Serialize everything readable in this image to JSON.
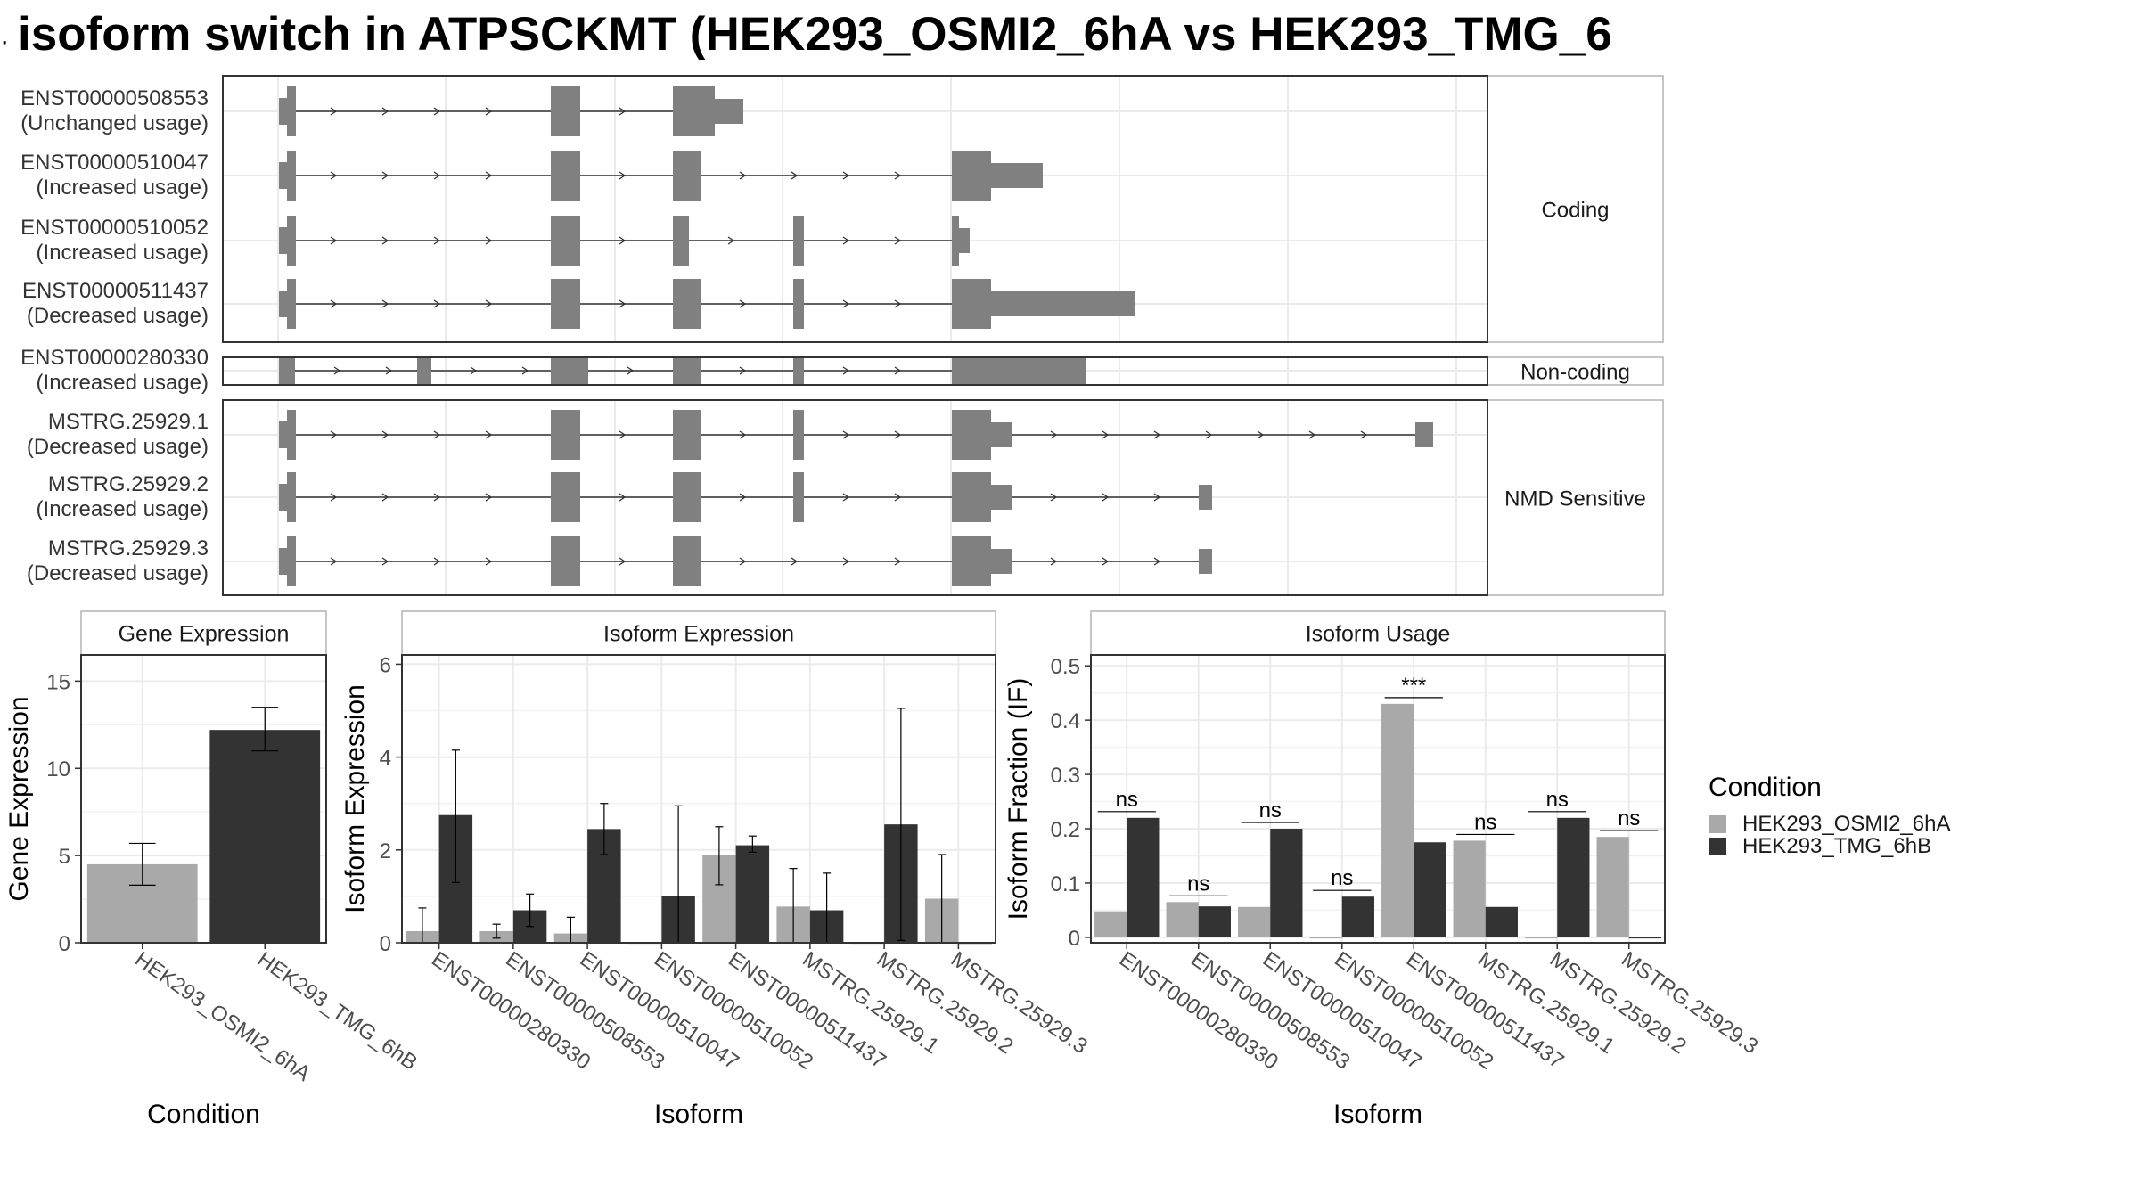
{
  "title": "isoform switch in ATPSCKMT (HEK293_OSMI2_6hA vs HEK293_TMG_6",
  "colors": {
    "cond_a": "#a9a9a9",
    "cond_b": "#333333",
    "exon": "#808080",
    "panel_border": "#333333",
    "grid": "#ebebeb",
    "strip_border": "#b3b3b3"
  },
  "structure": {
    "groups": [
      {
        "label": "Coding",
        "isoforms": [
          {
            "id": "ENST00000508553",
            "usage": "(Unchanged usage)"
          },
          {
            "id": "ENST00000510047",
            "usage": "(Increased usage)"
          },
          {
            "id": "ENST00000510052",
            "usage": "(Increased usage)"
          },
          {
            "id": "ENST00000511437",
            "usage": "(Decreased usage)"
          }
        ]
      },
      {
        "label": "Non-coding",
        "isoforms": [
          {
            "id": "ENST00000280330",
            "usage": "(Increased usage)"
          }
        ]
      },
      {
        "label": "NMD Sensitive",
        "isoforms": [
          {
            "id": "MSTRG.25929.1",
            "usage": "(Decreased usage)"
          },
          {
            "id": "MSTRG.25929.2",
            "usage": "(Increased usage)"
          },
          {
            "id": "MSTRG.25929.3",
            "usage": "(Decreased usage)"
          }
        ]
      }
    ]
  },
  "legend": {
    "title": "Condition",
    "entries": [
      "HEK293_OSMI2_6hA",
      "HEK293_TMG_6hB"
    ]
  },
  "chart_data": [
    {
      "type": "bar",
      "title": "Gene Expression",
      "xlabel": "Condition",
      "ylabel": "Gene Expression",
      "ylim": [
        0,
        16.5
      ],
      "yticks": [
        0,
        5,
        10,
        15
      ],
      "categories": [
        "HEK293_OSMI2_6hA",
        "HEK293_TMG_6hB"
      ],
      "values": [
        4.5,
        12.2
      ],
      "errors_low": [
        3.3,
        11.0
      ],
      "errors_high": [
        5.7,
        13.5
      ]
    },
    {
      "type": "bar",
      "title": "Isoform Expression",
      "xlabel": "Isoform",
      "ylabel": "Isoform Expression",
      "ylim": [
        0,
        6.2
      ],
      "yticks": [
        0,
        2,
        4,
        6
      ],
      "categories": [
        "ENST00000280330",
        "ENST00000508553",
        "ENST00000510047",
        "ENST00000510052",
        "ENST00000511437",
        "MSTRG.25929.1",
        "MSTRG.25929.2",
        "MSTRG.25929.3"
      ],
      "series": [
        {
          "name": "HEK293_OSMI2_6hA",
          "values": [
            0.25,
            0.25,
            0.2,
            0.0,
            1.9,
            0.78,
            0.0,
            0.95
          ],
          "errors_low": [
            0.0,
            0.1,
            0.0,
            0.0,
            1.25,
            0.0,
            0.0,
            0.0
          ],
          "errors_high": [
            0.75,
            0.4,
            0.55,
            0.0,
            2.5,
            1.6,
            0.0,
            1.9
          ]
        },
        {
          "name": "HEK293_TMG_6hB",
          "values": [
            2.75,
            0.7,
            2.45,
            1.0,
            2.1,
            0.7,
            2.55,
            0.0
          ],
          "errors_low": [
            1.3,
            0.35,
            1.9,
            0.0,
            1.95,
            0.0,
            0.05,
            0.0
          ],
          "errors_high": [
            4.15,
            1.05,
            3.0,
            2.95,
            2.3,
            1.5,
            5.05,
            0.0
          ]
        }
      ]
    },
    {
      "type": "bar",
      "title": "Isoform Usage",
      "xlabel": "Isoform",
      "ylabel": "Isoform Fraction (IF)",
      "ylim": [
        -0.01,
        0.52
      ],
      "yticks": [
        0.0,
        0.1,
        0.2,
        0.3,
        0.4,
        0.5
      ],
      "categories": [
        "ENST00000280330",
        "ENST00000508553",
        "ENST00000510047",
        "ENST00000510052",
        "ENST00000511437",
        "MSTRG.25929.1",
        "MSTRG.25929.2",
        "MSTRG.25929.3"
      ],
      "series": [
        {
          "name": "HEK293_OSMI2_6hA",
          "values": [
            0.048,
            0.065,
            0.056,
            0.0,
            0.43,
            0.178,
            0.0,
            0.185
          ]
        },
        {
          "name": "HEK293_TMG_6hB",
          "values": [
            0.22,
            0.057,
            0.2,
            0.075,
            0.175,
            0.056,
            0.22,
            0.0
          ]
        }
      ],
      "significance": [
        "ns",
        "ns",
        "ns",
        "ns",
        "***",
        "ns",
        "ns",
        "ns"
      ]
    }
  ]
}
